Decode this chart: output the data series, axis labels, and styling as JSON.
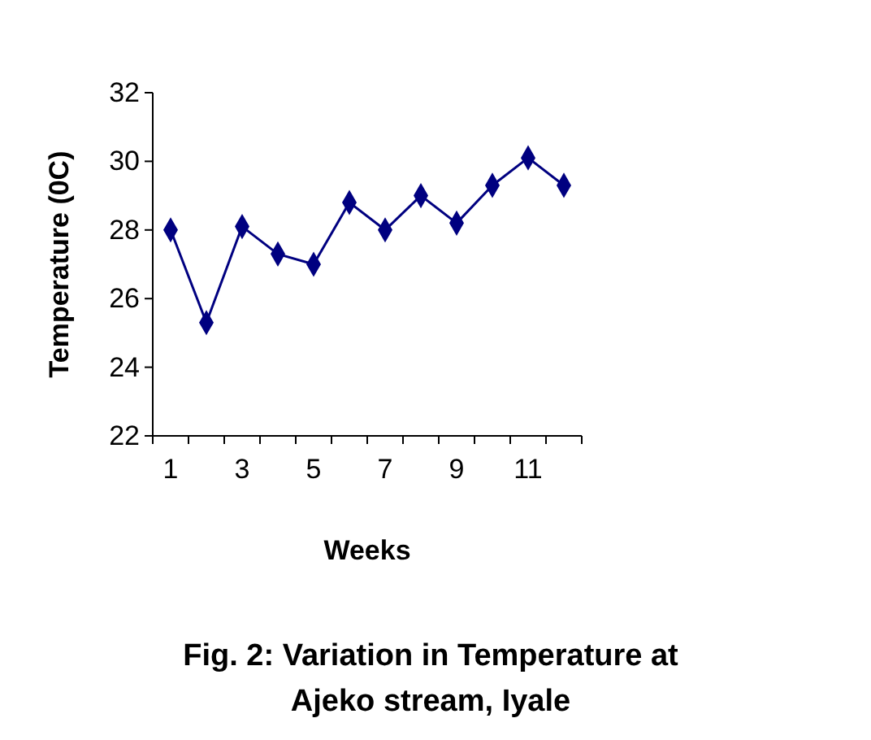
{
  "chart_data": {
    "type": "line",
    "title": "Fig. 2: Variation in Temperature at\nAjeko stream, Iyale",
    "xlabel": "Weeks",
    "ylabel": "Temperature (0C)",
    "categories": [
      "1",
      null,
      "3",
      null,
      "5",
      null,
      "7",
      null,
      "9",
      null,
      "11",
      null
    ],
    "series": [
      {
        "color": "#000080",
        "values": [
          28.0,
          25.3,
          28.1,
          27.3,
          27.0,
          28.8,
          28.0,
          29.0,
          28.2,
          29.3,
          30.1,
          29.3
        ]
      }
    ],
    "ylim": [
      22,
      32
    ],
    "yticks": [
      22,
      24,
      26,
      28,
      30,
      32
    ],
    "marker": "diamond"
  }
}
